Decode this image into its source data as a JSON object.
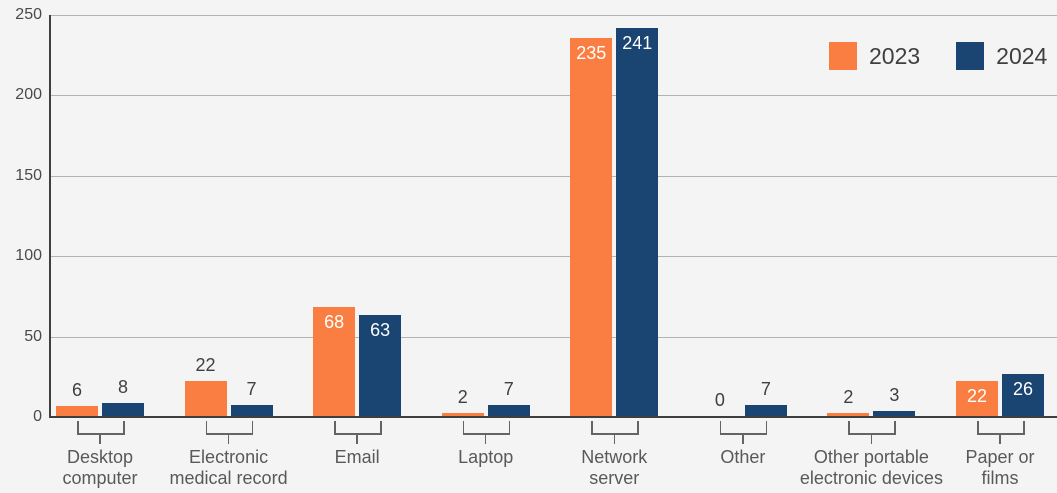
{
  "chart_data": {
    "type": "bar",
    "title": "",
    "xlabel": "",
    "ylabel": "",
    "categories": [
      "Desktop computer",
      "Electronic medical record",
      "Email",
      "Laptop",
      "Network server",
      "Other",
      "Other portable electronic devices",
      "Paper or films"
    ],
    "category_label_lines": [
      [
        "Desktop",
        "computer"
      ],
      [
        "Electronic",
        "medical record"
      ],
      [
        "Email"
      ],
      [
        "Laptop"
      ],
      [
        "Network",
        "server"
      ],
      [
        "Other"
      ],
      [
        "Other portable",
        "electronic devices"
      ],
      [
        "Paper or",
        "films"
      ]
    ],
    "series": [
      {
        "name": "2023",
        "color": "#FA7E41",
        "values": [
          6,
          22,
          68,
          2,
          235,
          0,
          2,
          22
        ],
        "value_label_inside": [
          false,
          false,
          true,
          false,
          true,
          false,
          false,
          true
        ]
      },
      {
        "name": "2024",
        "color": "#1A4472",
        "values": [
          8,
          7,
          63,
          7,
          241,
          7,
          3,
          26
        ],
        "value_label_inside": [
          false,
          false,
          true,
          false,
          true,
          false,
          false,
          true
        ]
      }
    ],
    "ylim": [
      0,
      250
    ],
    "yticks": [
      0,
      50,
      100,
      150,
      200,
      250
    ],
    "grid": "horizontal",
    "legend_position": "top-right"
  },
  "colors": {
    "background": "#F4F4F4",
    "gridline": "#B3B3B3",
    "axis": "#3F3F3F",
    "tick_label": "#4A4A4A",
    "category_label": "#595959",
    "bracket": "#646464",
    "value_label_dark": "#3F3F3F",
    "value_label_light": "#FFFFFF"
  }
}
